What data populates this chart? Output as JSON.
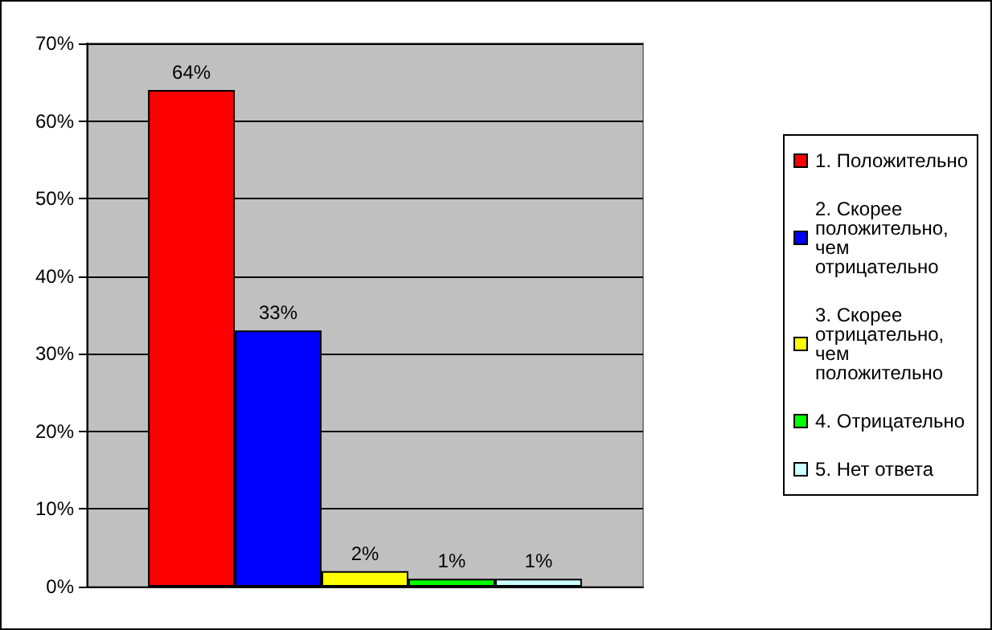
{
  "chart_data": {
    "type": "bar",
    "categories": [
      null
    ],
    "series": [
      {
        "name": "1. Положительно",
        "color": "#ff0000",
        "values": [
          64
        ],
        "value_labels": [
          "64%"
        ]
      },
      {
        "name": "2. Скорее положительно, чем отрицательно",
        "color": "#0000ff",
        "values": [
          33
        ],
        "value_labels": [
          "33%"
        ]
      },
      {
        "name": "3. Скорее отрицательно, чем положительно",
        "color": "#ffff00",
        "values": [
          2
        ],
        "value_labels": [
          "2%"
        ]
      },
      {
        "name": "4. Отрицательно",
        "color": "#00ff00",
        "values": [
          1
        ],
        "value_labels": [
          "1%"
        ]
      },
      {
        "name": "5. Нет ответа",
        "color": "#ccffff",
        "values": [
          1
        ],
        "value_labels": [
          "1%"
        ]
      }
    ],
    "ylim": [
      0,
      70
    ],
    "yticks": [
      {
        "value": 0,
        "label": "0%"
      },
      {
        "value": 10,
        "label": "10%"
      },
      {
        "value": 20,
        "label": "20%"
      },
      {
        "value": 30,
        "label": "30%"
      },
      {
        "value": 40,
        "label": "40%"
      },
      {
        "value": 50,
        "label": "50%"
      },
      {
        "value": 60,
        "label": "60%"
      },
      {
        "value": 70,
        "label": "70%"
      }
    ],
    "grid": "y",
    "legend": "right"
  }
}
